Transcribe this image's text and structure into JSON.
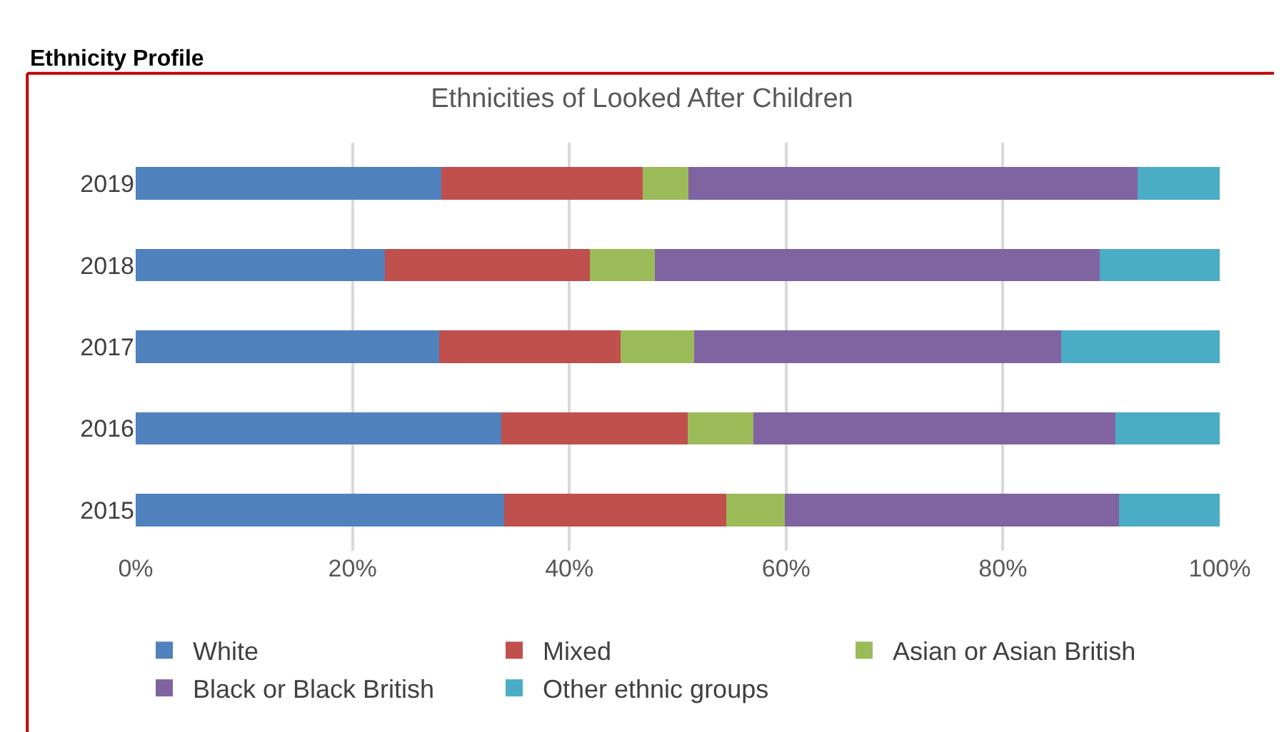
{
  "chart_data": {
    "type": "bar",
    "orientation": "horizontal",
    "stacked": true,
    "title": "Ethnicities of Looked After Children",
    "annotations": [
      "Ethnicity Profile"
    ],
    "categories": [
      "2019",
      "2018",
      "2017",
      "2016",
      "2015"
    ],
    "series": [
      {
        "name": "White",
        "color": "#4f81bd",
        "values": [
          28.2,
          23.0,
          28.0,
          33.7,
          34.0
        ]
      },
      {
        "name": "Mixed",
        "color": "#c0504d",
        "values": [
          18.6,
          18.9,
          16.7,
          17.2,
          20.5
        ]
      },
      {
        "name": "Asian or Asian British",
        "color": "#9bbb59",
        "values": [
          4.2,
          6.0,
          6.8,
          6.1,
          5.4
        ]
      },
      {
        "name": "Black or Black British",
        "color": "#8064a2",
        "values": [
          41.4,
          41.0,
          33.9,
          33.4,
          30.8
        ]
      },
      {
        "name": "Other ethnic groups",
        "color": "#4bacc6",
        "values": [
          7.6,
          11.1,
          14.6,
          9.6,
          9.3
        ]
      }
    ],
    "xlim": [
      0,
      100
    ],
    "xticks": [
      {
        "value": 0,
        "label": "0%"
      },
      {
        "value": 20,
        "label": "20%"
      },
      {
        "value": 40,
        "label": "40%"
      },
      {
        "value": 60,
        "label": "60%"
      },
      {
        "value": 80,
        "label": "80%"
      },
      {
        "value": 100,
        "label": "100%"
      }
    ],
    "grid": "x",
    "legend": "bottom"
  }
}
